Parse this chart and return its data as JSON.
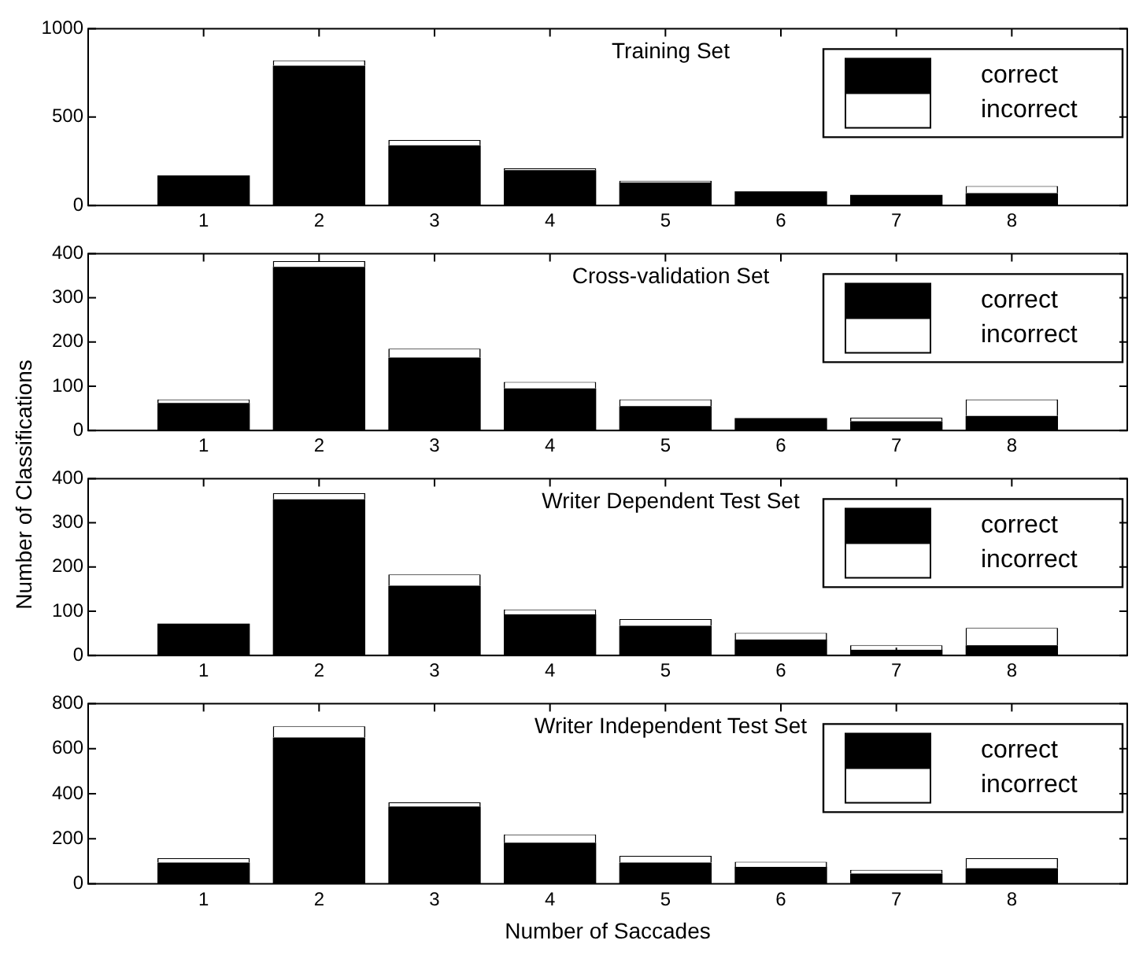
{
  "chart_data": [
    {
      "type": "bar",
      "title": "Training Set",
      "stacked": true,
      "legend": "top right",
      "x": [
        1,
        2,
        3,
        4,
        5,
        6,
        7,
        8
      ],
      "xlim": [
        0,
        9
      ],
      "xticks": [
        1,
        2,
        3,
        4,
        5,
        6,
        7,
        8
      ],
      "ylim": [
        0,
        1000
      ],
      "yticks": [
        0,
        500,
        1000
      ],
      "series": [
        {
          "name": "correct",
          "color": "#000000",
          "values": [
            170,
            790,
            340,
            200,
            130,
            80,
            60,
            70
          ]
        },
        {
          "name": "incorrect",
          "color": "#ffffff",
          "values": [
            0,
            30,
            30,
            10,
            10,
            0,
            0,
            40
          ]
        }
      ]
    },
    {
      "type": "bar",
      "title": "Cross-validation Set",
      "ylabel": "Number of Classifications",
      "stacked": true,
      "legend": "top right",
      "x": [
        1,
        2,
        3,
        4,
        5,
        6,
        7,
        8
      ],
      "xlim": [
        0,
        9
      ],
      "xticks": [
        1,
        2,
        3,
        4,
        5,
        6,
        7,
        8
      ],
      "ylim": [
        0,
        400
      ],
      "yticks": [
        0,
        100,
        200,
        300,
        400
      ],
      "series": [
        {
          "name": "correct",
          "color": "#000000",
          "values": [
            62,
            370,
            165,
            95,
            55,
            28,
            21,
            33
          ]
        },
        {
          "name": "incorrect",
          "color": "#ffffff",
          "values": [
            8,
            13,
            20,
            15,
            15,
            0,
            8,
            37
          ]
        }
      ]
    },
    {
      "type": "bar",
      "title": "Writer Dependent Test Set",
      "stacked": true,
      "legend": "top right",
      "x": [
        1,
        2,
        3,
        4,
        5,
        6,
        7,
        8
      ],
      "xlim": [
        0,
        9
      ],
      "xticks": [
        1,
        2,
        3,
        4,
        5,
        6,
        7,
        8
      ],
      "ylim": [
        0,
        400
      ],
      "yticks": [
        0,
        100,
        200,
        300,
        400
      ],
      "series": [
        {
          "name": "correct",
          "color": "#000000",
          "values": [
            72,
            353,
            158,
            93,
            67,
            36,
            13,
            23
          ]
        },
        {
          "name": "incorrect",
          "color": "#ffffff",
          "values": [
            0,
            14,
            25,
            11,
            15,
            15,
            10,
            39
          ]
        }
      ]
    },
    {
      "type": "bar",
      "title": "Writer Independent Test Set",
      "xlabel": "Number of Saccades",
      "stacked": true,
      "legend": "top right",
      "x": [
        1,
        2,
        3,
        4,
        5,
        6,
        7,
        8
      ],
      "xlim": [
        0,
        9
      ],
      "xticks": [
        1,
        2,
        3,
        4,
        5,
        6,
        7,
        8
      ],
      "ylim": [
        0,
        800
      ],
      "yticks": [
        0,
        200,
        400,
        600,
        800
      ],
      "series": [
        {
          "name": "correct",
          "color": "#000000",
          "values": [
            95,
            650,
            343,
            183,
            95,
            75,
            46,
            69
          ]
        },
        {
          "name": "incorrect",
          "color": "#ffffff",
          "values": [
            19,
            49,
            19,
            36,
            29,
            23,
            16,
            45
          ]
        }
      ]
    }
  ]
}
